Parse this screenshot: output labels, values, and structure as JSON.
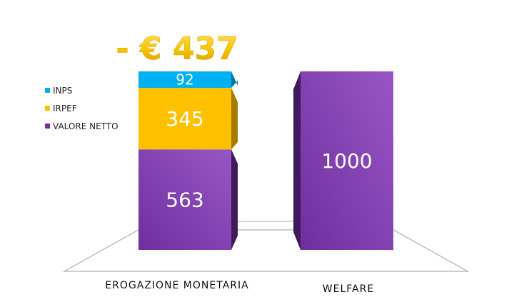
{
  "chart_data": {
    "type": "bar",
    "stacked": true,
    "three_d": true,
    "categories": [
      "EROGAZIONE MONETARIA",
      "WELFARE"
    ],
    "series": [
      {
        "name": "VALORE NETTO",
        "values": [
          563,
          1000
        ],
        "color": "#7030a0"
      },
      {
        "name": "IRPEF",
        "values": [
          345,
          0
        ],
        "color": "#ffc000"
      },
      {
        "name": "INPS",
        "values": [
          92,
          0
        ],
        "color": "#00b0f0"
      }
    ],
    "data_labels": {
      "inps_0": "92",
      "irpef_0": "345",
      "netto_0": "563",
      "netto_1": "1000"
    },
    "annotation": "- € 437",
    "annotation_color": "#f5c400",
    "legend": {
      "position": "left",
      "entries": [
        "INPS",
        "IRPEF",
        "VALORE NETTO"
      ]
    },
    "ylim": [
      0,
      1000
    ],
    "grid": false
  }
}
